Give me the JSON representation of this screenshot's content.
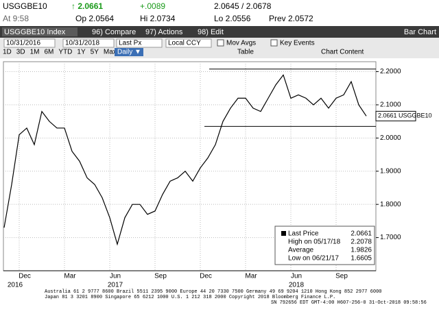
{
  "ui": {
    "ticker": "USGGBE10",
    "last": "↑ 2.0661",
    "change": "+.0089",
    "bid_ask": "2.0645 / 2.0678",
    "time": "At 9:58",
    "open": "Op 2.0564",
    "high": "Hi 2.0734",
    "low": "Lo 2.0556",
    "prev": "Prev 2.0572",
    "security": "USGGBE10 Index",
    "compare": "96) Compare",
    "actions": "97) Actions",
    "edit": "98) Edit",
    "chart_kind": "Bar Chart",
    "start_date": "10/31/2016",
    "end_date": "10/31/2018",
    "field": "Last Px",
    "currency": "Local CCY",
    "mov_avgs": "Mov Avgs",
    "key_events": "Key Events",
    "ranges": [
      "1D",
      "3D",
      "1M",
      "6M",
      "YTD",
      "1Y",
      "5Y",
      "Max"
    ],
    "frequency": "Daily ▼",
    "table": "Table",
    "chart_content": "Chart Content",
    "footer": [
      "Australia 61 2 9777 8600 Brazil 5511 2395 9000 Europe 44 20 7330 7500 Germany 49 69 9204 1210 Hong Kong 852 2977 6000",
      "Japan 81 3 3201 8900        Singapore 65 6212 1000        U.S. 1 212 318 2000        Copyright 2018 Bloomberg Finance L.P.",
      "SN 792656 EDT  GMT-4:00 H607-256-0 31-Oct-2018 09:58:56"
    ]
  },
  "chart_data": {
    "type": "line",
    "categories": [
      null,
      null,
      "Dec",
      null,
      null,
      null,
      null,
      null,
      "Mar",
      null,
      null,
      null,
      null,
      null,
      "Jun",
      null,
      null,
      null,
      null,
      null,
      "Sep",
      null,
      null,
      null,
      null,
      null,
      "Dec",
      null,
      null,
      null,
      null,
      null,
      "Mar",
      null,
      null,
      null,
      null,
      null,
      "Jun",
      null,
      null,
      null,
      null,
      null,
      "Sep",
      null,
      null,
      null,
      null
    ],
    "year_labels": [
      "2016",
      "2017",
      "2018"
    ],
    "series": [
      {
        "name": "Last Price",
        "color": "#000000",
        "values": [
          1.73,
          1.86,
          2.01,
          2.03,
          1.98,
          2.08,
          2.05,
          2.03,
          2.03,
          1.96,
          1.93,
          1.88,
          1.86,
          1.82,
          1.76,
          1.68,
          1.76,
          1.8,
          1.8,
          1.77,
          1.78,
          1.83,
          1.87,
          1.88,
          1.9,
          1.87,
          1.91,
          1.94,
          1.98,
          2.05,
          2.09,
          2.12,
          2.12,
          2.09,
          2.08,
          2.12,
          2.16,
          2.19,
          2.12,
          2.13,
          2.12,
          2.1,
          2.12,
          2.09,
          2.12,
          2.13,
          2.17,
          2.1,
          2.0661
        ]
      }
    ],
    "last_tag": "2.0661 USGGBE10",
    "hlines": [
      2.2078,
      2.035
    ],
    "ylim": [
      1.6,
      2.23
    ],
    "yticks": [
      {
        "value": 1.7,
        "label": "1.7000"
      },
      {
        "value": 1.8,
        "label": "1.8000"
      },
      {
        "value": 1.9,
        "label": "1.9000"
      },
      {
        "value": 2.0,
        "label": "2.0000"
      },
      {
        "value": 2.1,
        "label": "2.1000"
      },
      {
        "value": 2.2,
        "label": "2.2000"
      }
    ],
    "grid": true,
    "legend": [
      [
        "Last Price",
        "2.0661"
      ],
      [
        "High on 05/17/18",
        "2.2078"
      ],
      [
        "Average",
        "1.9826"
      ],
      [
        "Low on 06/21/17",
        "1.6605"
      ]
    ]
  }
}
